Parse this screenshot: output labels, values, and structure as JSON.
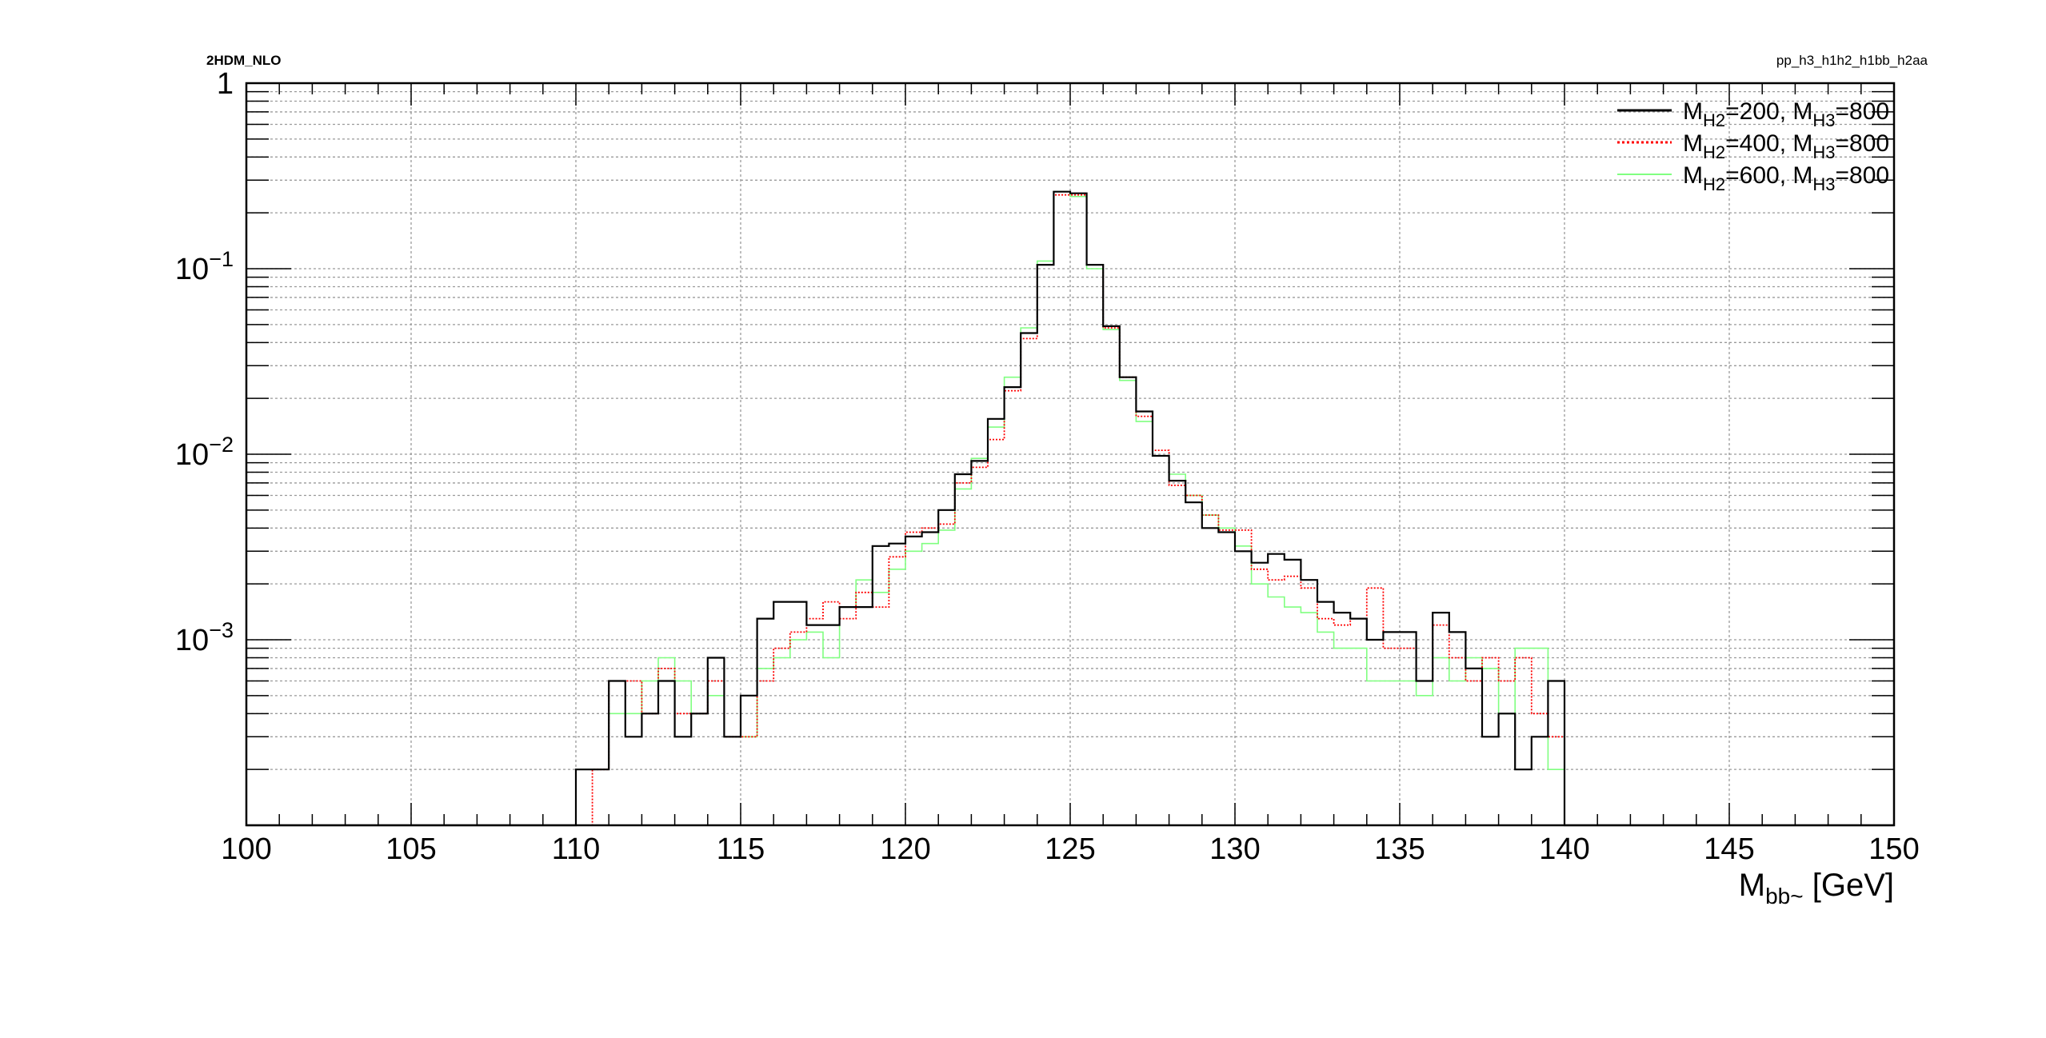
{
  "header": {
    "left_label": "2HDM_NLO",
    "right_label": "pp_h3_h1h2_h1bb_h2aa"
  },
  "chart_data": {
    "type": "line",
    "title": "",
    "xlabel": "M",
    "xlabel_sub": "bb~",
    "xlabel_unit": " [GeV]",
    "ylabel": "",
    "xlim": [
      100,
      150
    ],
    "ylim": [
      0.0001,
      1
    ],
    "yscale": "log",
    "grid": true,
    "legend_position": "top-right",
    "x_ticks": [
      "100",
      "105",
      "110",
      "115",
      "120",
      "125",
      "130",
      "135",
      "140",
      "145",
      "150"
    ],
    "y_ticks": [
      {
        "base": "1",
        "exp": ""
      },
      {
        "base": "10",
        "exp": "−1"
      },
      {
        "base": "10",
        "exp": "−2"
      },
      {
        "base": "10",
        "exp": "−3"
      }
    ],
    "bin_edges_start": 100,
    "bin_width": 0.5,
    "series": [
      {
        "name": "M=200, M=800",
        "legend": {
          "m1": "M",
          "s1": "H2",
          "v1": "=200, ",
          "m2": "M",
          "s2": "H3",
          "v2": "=800"
        },
        "color": "#000000",
        "style": "solid",
        "values": [
          0,
          0,
          0,
          0,
          0,
          0,
          0,
          0,
          0,
          0,
          0,
          0,
          0,
          0,
          0,
          0,
          0,
          0,
          0,
          0,
          0.0002,
          0.0002,
          0.0006,
          0.0003,
          0.0004,
          0.0006,
          0.0003,
          0.0004,
          0.0008,
          0.0003,
          0.0005,
          0.0013,
          0.0016,
          0.0016,
          0.0012,
          0.0012,
          0.0015,
          0.0015,
          0.0032,
          0.0033,
          0.0036,
          0.0038,
          0.005,
          0.0078,
          0.0092,
          0.0155,
          0.023,
          0.045,
          0.105,
          0.26,
          0.255,
          0.105,
          0.049,
          0.026,
          0.017,
          0.0098,
          0.0072,
          0.0055,
          0.004,
          0.0038,
          0.003,
          0.0026,
          0.0029,
          0.0027,
          0.0021,
          0.0016,
          0.0014,
          0.0013,
          0.001,
          0.0011,
          0.0011,
          0.0006,
          0.0014,
          0.0011,
          0.0007,
          0.0003,
          0.0004,
          0.0002,
          0.0003,
          0.0006,
          0,
          0,
          0,
          0,
          0,
          0,
          0,
          0,
          0,
          0,
          0,
          0,
          0,
          0,
          0,
          0,
          0,
          0,
          0,
          0
        ]
      },
      {
        "name": "M=400, M=800",
        "legend": {
          "m1": "M",
          "s1": "H2",
          "v1": "=400, ",
          "m2": "M",
          "s2": "H3",
          "v2": "=800"
        },
        "color": "#ff0000",
        "style": "dotted",
        "values": [
          0,
          0,
          0,
          0,
          0,
          0,
          0,
          0,
          0,
          0,
          0,
          0,
          0,
          0,
          0,
          0,
          0,
          0,
          0,
          0,
          0,
          0.0002,
          0.0006,
          0.0006,
          0.0004,
          0.0007,
          0.0004,
          0.0004,
          0.0006,
          0.0003,
          0.0003,
          0.0006,
          0.0009,
          0.0011,
          0.0013,
          0.0016,
          0.0013,
          0.0018,
          0.0015,
          0.0028,
          0.0038,
          0.004,
          0.0042,
          0.007,
          0.0085,
          0.012,
          0.022,
          0.042,
          0.105,
          0.25,
          0.25,
          0.105,
          0.048,
          0.026,
          0.016,
          0.0105,
          0.0068,
          0.006,
          0.0047,
          0.0039,
          0.0039,
          0.0024,
          0.0021,
          0.0022,
          0.0019,
          0.0013,
          0.0012,
          0.0013,
          0.0019,
          0.0009,
          0.0009,
          0.0006,
          0.0012,
          0.0008,
          0.0006,
          0.0008,
          0.0006,
          0.0008,
          0.0004,
          0.0003,
          0,
          0,
          0,
          0,
          0,
          0,
          0,
          0,
          0,
          0,
          0,
          0,
          0,
          0,
          0,
          0,
          0,
          0,
          0,
          0
        ]
      },
      {
        "name": "M=600, M=800",
        "legend": {
          "m1": "M",
          "s1": "H2",
          "v1": "=600, ",
          "m2": "M",
          "s2": "H3",
          "v2": "=800"
        },
        "color": "#80ff80",
        "style": "solid-thin",
        "values": [
          0,
          0,
          0,
          0,
          0,
          0,
          0,
          0,
          0,
          0,
          0,
          0,
          0,
          0,
          0,
          0,
          0,
          0,
          0,
          0,
          0.0002,
          0.0002,
          0.0004,
          0.0004,
          0.0006,
          0.0008,
          0.0006,
          0.0004,
          0.0005,
          0.0003,
          0.0003,
          0.0007,
          0.0008,
          0.001,
          0.0011,
          0.0008,
          0.0015,
          0.0021,
          0.0018,
          0.0024,
          0.003,
          0.0033,
          0.0039,
          0.0065,
          0.0095,
          0.014,
          0.026,
          0.048,
          0.11,
          0.26,
          0.245,
          0.1,
          0.047,
          0.025,
          0.015,
          0.0098,
          0.0078,
          0.006,
          0.0047,
          0.004,
          0.0032,
          0.002,
          0.0017,
          0.0015,
          0.0014,
          0.0011,
          0.0009,
          0.0009,
          0.0006,
          0.0006,
          0.0006,
          0.0005,
          0.0008,
          0.0006,
          0.0008,
          0.0007,
          0.0004,
          0.0009,
          0.0009,
          0.0002,
          0,
          0,
          0,
          0,
          0,
          0,
          0,
          0,
          0,
          0,
          0,
          0,
          0,
          0,
          0,
          0,
          0,
          0,
          0,
          0
        ]
      }
    ]
  }
}
